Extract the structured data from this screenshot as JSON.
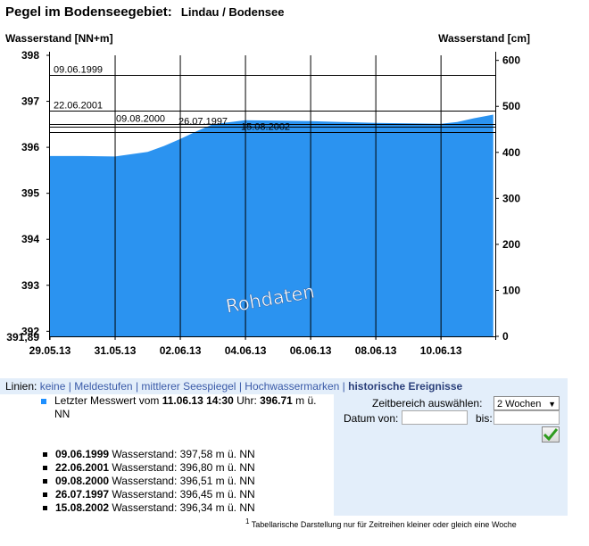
{
  "header": {
    "title": "Pegel im Bodenseegebiet:",
    "station": "Lindau / Bodensee",
    "left_axis_label": "Wasserstand [NN+m]",
    "right_axis_label": "Wasserstand [cm]"
  },
  "chart_data": {
    "type": "area",
    "watermark": "Rohdaten",
    "fill_color": "#2b93f0",
    "left_axis": {
      "min": 391.89,
      "max": 398.0,
      "ticks": [
        398,
        397,
        396,
        395,
        394,
        393,
        392
      ],
      "bottom_label": "391,89"
    },
    "right_axis": {
      "ticks": [
        600,
        500,
        400,
        300,
        200,
        100,
        0
      ]
    },
    "x_labels": [
      "29.05.13",
      "31.05.13",
      "02.06.13",
      "04.06.13",
      "06.06.13",
      "08.06.13",
      "10.06.13"
    ],
    "x_range": [
      "29.05.13",
      "11.06.13 14:30"
    ],
    "series": [
      {
        "x": [
          "29.05.13",
          "30.05.13",
          "31.05.13",
          "01.06.13",
          "01.06.13 12:00",
          "02.06.13",
          "02.06.13 12:00",
          "03.06.13",
          "04.06.13",
          "05.06.13",
          "06.06.13",
          "07.06.13",
          "08.06.13",
          "09.06.13",
          "10.06.13",
          "10.06.13 12:00",
          "11.06.13",
          "11.06.13 14:30"
        ],
        "y": [
          395.81,
          395.81,
          395.8,
          395.9,
          396.03,
          396.18,
          396.35,
          396.5,
          396.59,
          396.58,
          396.57,
          396.55,
          396.53,
          396.52,
          396.51,
          396.55,
          396.63,
          396.71
        ]
      }
    ],
    "reference_lines": [
      {
        "label": "09.06.1999",
        "value": 397.58
      },
      {
        "label": "22.06.2001",
        "value": 396.8
      },
      {
        "label": "09.08.2000",
        "value": 396.51
      },
      {
        "label": "26.07.1997",
        "value": 396.45
      },
      {
        "label": "15.08.2002",
        "value": 396.34
      }
    ]
  },
  "lines_bar": {
    "prefix": "Linien:",
    "links": [
      "keine",
      "Meldestufen",
      "mittlerer Seespiegel",
      "Hochwassermarken"
    ],
    "active": "historische Ereignisse"
  },
  "latest": {
    "text_a": "Letzter Messwert vom ",
    "datetime": "11.06.13 14:30",
    "text_b": " Uhr: ",
    "value": "396.71",
    "text_c": " m ü. NN"
  },
  "history": [
    {
      "date": "09.06.1999",
      "text": " Wasserstand: 397,58 m ü. NN"
    },
    {
      "date": "22.06.2001",
      "text": " Wasserstand: 396,80 m ü. NN"
    },
    {
      "date": "09.08.2000",
      "text": " Wasserstand: 396,51 m ü. NN"
    },
    {
      "date": "26.07.1997",
      "text": " Wasserstand: 396,45 m ü. NN"
    },
    {
      "date": "15.08.2002",
      "text": " Wasserstand: 396,34 m ü. NN"
    }
  ],
  "panel": {
    "range_label": "Zeitbereich auswählen:",
    "range_value": "2 Wochen",
    "from_label": "Datum von:",
    "to_label": "bis:"
  },
  "footnote": {
    "mark": "1",
    "text": "Tabellarische Darstellung nur für Zeitreihen kleiner oder gleich eine Woche"
  }
}
